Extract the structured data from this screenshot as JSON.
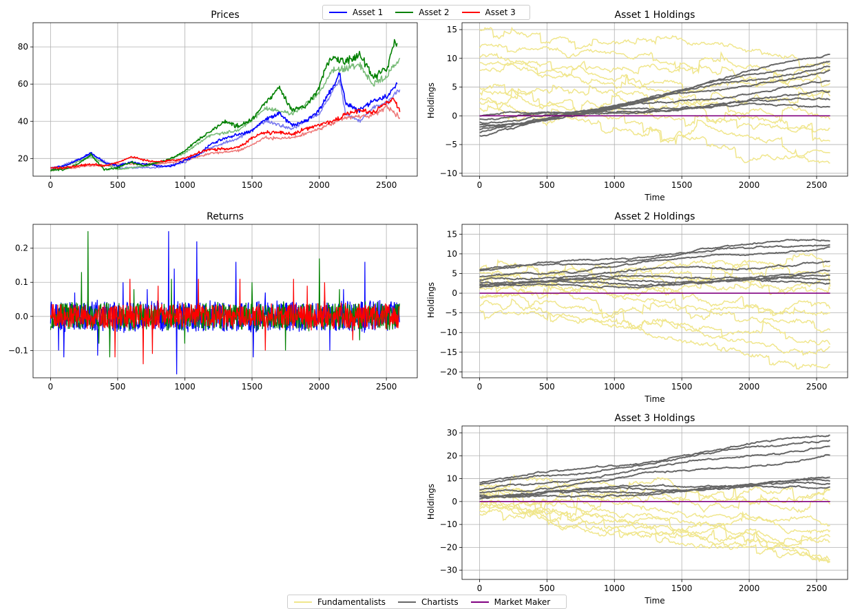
{
  "figure": {
    "top_legend": [
      {
        "label": "Asset 1",
        "color": "#0000ff"
      },
      {
        "label": "Asset 2",
        "color": "#008000"
      },
      {
        "label": "Asset 3",
        "color": "#ff0000"
      }
    ],
    "bottom_legend": [
      {
        "label": "Fundamentalists",
        "color": "#f0e68c"
      },
      {
        "label": "Chartists",
        "color": "#666666"
      },
      {
        "label": "Market Maker",
        "color": "#800080"
      }
    ]
  },
  "chart_data": [
    {
      "id": "prices",
      "type": "line",
      "title": "Prices",
      "xlabel": "",
      "ylabel": "",
      "xlim": [
        -130,
        2730
      ],
      "ylim": [
        10.5,
        93
      ],
      "xticks": [
        0,
        500,
        1000,
        1500,
        2000,
        2500
      ],
      "yticks": [
        20,
        40,
        60,
        80
      ],
      "grid": true,
      "series": [
        {
          "name": "Asset 1",
          "color": "#0000ff",
          "x": [
            0,
            100,
            200,
            300,
            400,
            500,
            600,
            700,
            800,
            900,
            1000,
            1100,
            1200,
            1300,
            1400,
            1500,
            1600,
            1700,
            1800,
            1900,
            2000,
            2100,
            2150,
            2200,
            2300,
            2400,
            2500,
            2580
          ],
          "values": [
            15,
            16,
            19,
            23,
            18,
            16,
            18,
            17,
            16,
            16,
            19,
            22,
            28,
            31,
            33,
            35,
            41,
            44,
            38,
            40,
            46,
            58,
            66,
            49,
            46,
            51,
            53,
            60
          ]
        },
        {
          "name": "Asset 2",
          "color": "#008000",
          "x": [
            0,
            100,
            200,
            300,
            400,
            500,
            600,
            700,
            800,
            900,
            1000,
            1100,
            1200,
            1300,
            1400,
            1500,
            1600,
            1700,
            1800,
            1900,
            2000,
            2050,
            2100,
            2200,
            2300,
            2400,
            2500,
            2560,
            2580
          ],
          "values": [
            14,
            14,
            17,
            22,
            14,
            15,
            18,
            16,
            18,
            20,
            24,
            30,
            35,
            40,
            37,
            41,
            50,
            58,
            46,
            48,
            58,
            70,
            74,
            72,
            76,
            64,
            68,
            82,
            82
          ]
        },
        {
          "name": "Asset 3",
          "color": "#ff0000",
          "x": [
            0,
            100,
            200,
            300,
            400,
            500,
            600,
            700,
            800,
            900,
            1000,
            1100,
            1200,
            1300,
            1400,
            1500,
            1600,
            1700,
            1800,
            1900,
            2000,
            2100,
            2200,
            2300,
            2400,
            2500,
            2560,
            2600
          ],
          "values": [
            15,
            15,
            16,
            17,
            16,
            18,
            21,
            19,
            18,
            19,
            20,
            23,
            25,
            25,
            26,
            31,
            34,
            34,
            33,
            36,
            38,
            40,
            44,
            46,
            45,
            50,
            52,
            45
          ]
        }
      ],
      "faint_series": [
        {
          "color": "#7777ee",
          "x": [
            0,
            300,
            500,
            800,
            1000,
            1200,
            1400,
            1600,
            1800,
            2000,
            2100,
            2150,
            2200,
            2300,
            2400,
            2500,
            2600
          ],
          "values": [
            14,
            22,
            15,
            15,
            18,
            26,
            31,
            40,
            36,
            44,
            56,
            62,
            44,
            40,
            47,
            50,
            57
          ]
        },
        {
          "color": "#77bb77",
          "x": [
            0,
            300,
            500,
            800,
            1000,
            1200,
            1400,
            1600,
            1800,
            2000,
            2100,
            2200,
            2300,
            2400,
            2500,
            2600
          ],
          "values": [
            13,
            21,
            14,
            17,
            23,
            33,
            35,
            47,
            44,
            55,
            68,
            68,
            70,
            60,
            64,
            74
          ]
        },
        {
          "color": "#ee7777",
          "x": [
            0,
            300,
            500,
            800,
            1000,
            1200,
            1400,
            1600,
            1800,
            2000,
            2200,
            2400,
            2500,
            2600
          ],
          "values": [
            14,
            16,
            17,
            17,
            19,
            23,
            24,
            31,
            31,
            36,
            42,
            43,
            48,
            42
          ]
        }
      ]
    },
    {
      "id": "returns",
      "type": "line",
      "title": "Returns",
      "xlabel": "",
      "ylabel": "",
      "xlim": [
        -130,
        2730
      ],
      "ylim": [
        -0.18,
        0.27
      ],
      "xticks": [
        0,
        500,
        1000,
        1500,
        2000,
        2500
      ],
      "yticks": [
        -0.1,
        0.0,
        0.1,
        0.2
      ],
      "ytick_labels": [
        "−0.1",
        "0.0",
        "0.1",
        "0.2"
      ],
      "grid": true,
      "series": [
        {
          "name": "Asset 1",
          "color": "#0000ff",
          "band": 0.045,
          "spikes": [
            [
              60,
              -0.1
            ],
            [
              100,
              -0.12
            ],
            [
              180,
              0.07
            ],
            [
              350,
              -0.115
            ],
            [
              540,
              0.1
            ],
            [
              720,
              0.08
            ],
            [
              880,
              0.25
            ],
            [
              920,
              0.14
            ],
            [
              940,
              -0.17
            ],
            [
              1090,
              0.22
            ],
            [
              1380,
              0.16
            ],
            [
              1510,
              -0.12
            ],
            [
              1600,
              0.07
            ],
            [
              2080,
              -0.1
            ],
            [
              2180,
              0.08
            ],
            [
              2340,
              0.16
            ]
          ]
        },
        {
          "name": "Asset 2",
          "color": "#008000",
          "band": 0.04,
          "spikes": [
            [
              230,
              0.13
            ],
            [
              280,
              0.25
            ],
            [
              360,
              -0.08
            ],
            [
              440,
              -0.12
            ],
            [
              620,
              0.08
            ],
            [
              900,
              0.11
            ],
            [
              1000,
              -0.08
            ],
            [
              1500,
              0.1
            ],
            [
              1750,
              -0.1
            ],
            [
              2000,
              0.17
            ],
            [
              2150,
              0.08
            ],
            [
              2300,
              -0.07
            ]
          ]
        },
        {
          "name": "Asset 3",
          "color": "#ff0000",
          "band": 0.035,
          "spikes": [
            [
              480,
              -0.12
            ],
            [
              590,
              0.11
            ],
            [
              690,
              -0.14
            ],
            [
              760,
              -0.11
            ],
            [
              800,
              0.09
            ],
            [
              1100,
              0.11
            ],
            [
              1410,
              0.11
            ],
            [
              1600,
              -0.1
            ],
            [
              1810,
              0.11
            ],
            [
              1910,
              0.09
            ],
            [
              2040,
              0.1
            ],
            [
              2250,
              -0.07
            ]
          ]
        }
      ]
    },
    {
      "id": "asset1_holdings",
      "type": "line",
      "title": "Asset 1 Holdings",
      "xlabel": "Time",
      "ylabel": "Holdings",
      "xlim": [
        -130,
        2730
      ],
      "ylim": [
        -10.5,
        16.2
      ],
      "xticks": [
        0,
        500,
        1000,
        1500,
        2000,
        2500
      ],
      "yticks": [
        -10,
        -5,
        0,
        5,
        10,
        15
      ],
      "ytick_labels": [
        "−10",
        "−5",
        "0",
        "5",
        "10",
        "15"
      ],
      "grid": true,
      "fundamentalists": {
        "count": 10,
        "start": [
          15,
          12,
          10,
          9,
          8,
          5,
          4,
          3,
          2,
          1
        ],
        "end": [
          9,
          7,
          5,
          3,
          1,
          0,
          -2,
          -4,
          -6,
          -9
        ]
      },
      "chartists": {
        "count": 8,
        "start": [
          -3.5,
          -3,
          -2.5,
          -2,
          -1.5,
          -1,
          -0.5,
          0
        ],
        "end": [
          11,
          10,
          9,
          8,
          6,
          4,
          3,
          2
        ]
      },
      "market_maker": 0
    },
    {
      "id": "asset2_holdings",
      "type": "line",
      "title": "Asset 2 Holdings",
      "xlabel": "Time",
      "ylabel": "Holdings",
      "xlim": [
        -130,
        2730
      ],
      "ylim": [
        -21.5,
        17.5
      ],
      "xticks": [
        0,
        500,
        1000,
        1500,
        2000,
        2500
      ],
      "yticks": [
        -20,
        -15,
        -10,
        -5,
        0,
        5,
        10,
        15
      ],
      "ytick_labels": [
        "−20",
        "−15",
        "−10",
        "−5",
        "0",
        "5",
        "10",
        "15"
      ],
      "grid": true,
      "fundamentalists": {
        "count": 10,
        "start": [
          6,
          5,
          4,
          3,
          2,
          1,
          0,
          -1,
          -3,
          -4
        ],
        "end": [
          8,
          5,
          3,
          0,
          -3,
          -6,
          -9,
          -12,
          -16,
          -19
        ]
      },
      "chartists": {
        "count": 8,
        "start": [
          6,
          5.5,
          4,
          3.5,
          3,
          2.5,
          2,
          1.5
        ],
        "end": [
          14,
          13,
          12,
          8,
          5,
          4,
          3.5,
          3
        ]
      },
      "market_maker": 0
    },
    {
      "id": "asset3_holdings",
      "type": "line",
      "title": "Asset 3 Holdings",
      "xlabel": "Time",
      "ylabel": "Holdings",
      "xlim": [
        -130,
        2730
      ],
      "ylim": [
        -34,
        33
      ],
      "xticks": [
        0,
        500,
        1000,
        1500,
        2000,
        2500
      ],
      "yticks": [
        -30,
        -20,
        -10,
        0,
        10,
        20,
        30
      ],
      "ytick_labels": [
        "−30",
        "−20",
        "−10",
        "0",
        "10",
        "20",
        "30"
      ],
      "grid": true,
      "fundamentalists": {
        "count": 10,
        "start": [
          8,
          5,
          3,
          1,
          0,
          -1,
          -2,
          -3,
          -4,
          -5
        ],
        "end": [
          5,
          0,
          -5,
          -10,
          -14,
          -17,
          -20,
          -23,
          -25,
          -27
        ]
      },
      "chartists": {
        "count": 8,
        "start": [
          8,
          7,
          5,
          4,
          3,
          2.5,
          2,
          1
        ],
        "end": [
          30,
          28,
          25,
          20,
          10,
          9,
          8,
          7
        ]
      },
      "market_maker": 0
    }
  ]
}
